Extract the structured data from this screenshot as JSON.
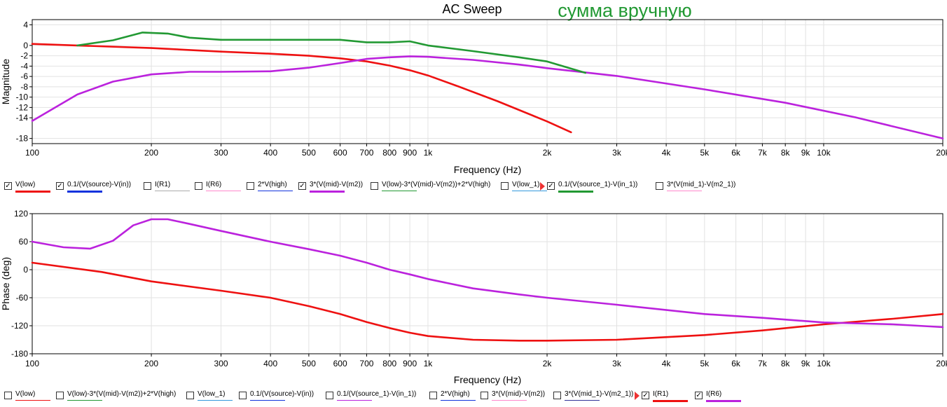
{
  "chart_data": [
    {
      "type": "line",
      "title": "AC Sweep",
      "annotation": "сумма вручную",
      "xlabel": "Frequency (Hz)",
      "ylabel": "Magnitude",
      "xscale": "log",
      "xlim": [
        100,
        20000
      ],
      "ylim": [
        -19,
        5
      ],
      "xticks": [
        100,
        200,
        300,
        400,
        500,
        600,
        700,
        800,
        900,
        1000,
        2000,
        3000,
        4000,
        5000,
        6000,
        7000,
        8000,
        9000,
        10000,
        20000
      ],
      "xticklabels": [
        "100",
        "200",
        "300",
        "400",
        "500",
        "600",
        "700",
        "800",
        "900",
        "1k",
        "2k",
        "3k",
        "4k",
        "5k",
        "6k",
        "7k",
        "8k",
        "9k",
        "10k",
        "20k"
      ],
      "yticks": [
        4,
        0,
        -2,
        -4,
        -6,
        -8,
        -10,
        -12,
        -14,
        -18
      ],
      "yticklabels": [
        "4",
        "0",
        "-2",
        "-4",
        "-6",
        "-8",
        "-10",
        "-12",
        "-14",
        "-18"
      ],
      "grid": true,
      "series": [
        {
          "name": "V(low)",
          "color": "#ee1111",
          "x": [
            100,
            200,
            300,
            400,
            500,
            600,
            700,
            800,
            900,
            1000,
            1200,
            1500,
            2000,
            2300
          ],
          "y": [
            0.3,
            -0.5,
            -1.2,
            -1.6,
            -2.0,
            -2.5,
            -3.1,
            -3.9,
            -4.8,
            -5.8,
            -8.0,
            -10.8,
            -14.7,
            -16.8
          ]
        },
        {
          "name": "3*(V(mid)-V(m2))",
          "color": "#bb22dd",
          "x": [
            100,
            130,
            160,
            200,
            250,
            300,
            400,
            500,
            600,
            700,
            800,
            900,
            1000,
            1300,
            1700,
            2000,
            3000,
            5000,
            8000,
            12000,
            20000
          ],
          "y": [
            -14.6,
            -9.5,
            -7.0,
            -5.6,
            -5.1,
            -5.1,
            -5.0,
            -4.3,
            -3.4,
            -2.6,
            -2.3,
            -2.1,
            -2.2,
            -2.8,
            -3.7,
            -4.4,
            -5.9,
            -8.5,
            -11.1,
            -13.9,
            -18.0
          ]
        },
        {
          "name": "0.1/(V(source_1)-V(in_1))",
          "color": "#229933",
          "x": [
            130,
            160,
            190,
            220,
            250,
            300,
            400,
            500,
            600,
            700,
            800,
            900,
            1000,
            1300,
            1700,
            2000,
            2500
          ],
          "y": [
            0.0,
            1.0,
            2.5,
            2.3,
            1.5,
            1.1,
            1.1,
            1.1,
            1.1,
            0.6,
            0.6,
            0.8,
            0.0,
            -1.1,
            -2.3,
            -3.1,
            -5.3
          ]
        }
      ]
    },
    {
      "type": "line",
      "xlabel": "Frequency (Hz)",
      "ylabel": "Phase (deg)",
      "xscale": "log",
      "xlim": [
        100,
        20000
      ],
      "ylim": [
        -180,
        120
      ],
      "xticks": [
        100,
        200,
        300,
        400,
        500,
        600,
        700,
        800,
        900,
        1000,
        2000,
        3000,
        4000,
        5000,
        6000,
        7000,
        8000,
        9000,
        10000,
        20000
      ],
      "xticklabels": [
        "100",
        "200",
        "300",
        "400",
        "500",
        "600",
        "700",
        "800",
        "900",
        "1k",
        "2k",
        "3k",
        "4k",
        "5k",
        "6k",
        "7k",
        "8k",
        "9k",
        "10k",
        "20k"
      ],
      "yticks": [
        120,
        60,
        0,
        -60,
        -120,
        -180
      ],
      "yticklabels": [
        "120",
        "60",
        "0",
        "-60",
        "-120",
        "-180"
      ],
      "grid": true,
      "series": [
        {
          "name": "I(R1)",
          "color": "#ee1111",
          "x": [
            100,
            150,
            200,
            300,
            400,
            500,
            600,
            700,
            800,
            900,
            1000,
            1300,
            1700,
            2000,
            3000,
            5000,
            7000,
            10000,
            15000,
            20000
          ],
          "y": [
            15,
            -5,
            -25,
            -45,
            -60,
            -78,
            -95,
            -112,
            -125,
            -135,
            -142,
            -150,
            -152,
            -152,
            -150,
            -140,
            -130,
            -117,
            -105,
            -95
          ]
        },
        {
          "name": "I(R6)",
          "color": "#bb22dd",
          "x": [
            100,
            120,
            140,
            160,
            180,
            200,
            220,
            250,
            300,
            400,
            500,
            600,
            700,
            800,
            900,
            1000,
            1300,
            1700,
            2000,
            3000,
            5000,
            7000,
            10000,
            15000,
            20000
          ],
          "y": [
            60,
            48,
            45,
            62,
            95,
            108,
            108,
            98,
            83,
            60,
            44,
            30,
            15,
            0,
            -10,
            -20,
            -40,
            -53,
            -60,
            -75,
            -95,
            -103,
            -113,
            -117,
            -123
          ]
        }
      ]
    }
  ],
  "legend_top": [
    {
      "label": "V(low)",
      "checked": true,
      "color": "#ee1111",
      "marker": false
    },
    {
      "label": "0.1/(V(source)-V(in))",
      "checked": true,
      "color": "#1133dd",
      "marker": false
    },
    {
      "label": "I(R1)",
      "checked": false,
      "color": "#aaaaaa",
      "marker": false
    },
    {
      "label": "I(R6)",
      "checked": false,
      "color": "#ff88cc",
      "marker": false
    },
    {
      "label": "2*V(high)",
      "checked": false,
      "color": "#1133dd",
      "marker": false
    },
    {
      "label": "3*(V(mid)-V(m2))",
      "checked": true,
      "color": "#bb22dd",
      "marker": false
    },
    {
      "label": "V(low)-3*(V(mid)-V(m2))+2*V(high)",
      "checked": false,
      "color": "#229933",
      "marker": false
    },
    {
      "label": "V(low_1)",
      "checked": false,
      "color": "#3399dd",
      "marker": false
    },
    {
      "label": "0.1/(V(source_1)-V(in_1))",
      "checked": true,
      "color": "#229933",
      "marker": true
    },
    {
      "label": "3*(V(mid_1)-V(m2_1))",
      "checked": false,
      "color": "#ff88cc",
      "marker": false
    }
  ],
  "legend_bottom": [
    {
      "label": "V(low)",
      "checked": false,
      "color": "#ee1111",
      "marker": false
    },
    {
      "label": "V(low)-3*(V(mid)-V(m2))+2*V(high)",
      "checked": false,
      "color": "#229933",
      "marker": false
    },
    {
      "label": "V(low_1)",
      "checked": false,
      "color": "#3399dd",
      "marker": false
    },
    {
      "label": "0.1/(V(source)-V(in))",
      "checked": false,
      "color": "#1133dd",
      "marker": false
    },
    {
      "label": "0.1/(V(source_1)-V(in_1))",
      "checked": false,
      "color": "#bb22dd",
      "marker": false
    },
    {
      "label": "2*V(high)",
      "checked": false,
      "color": "#1133dd",
      "marker": false
    },
    {
      "label": "3*(V(mid)-V(m2))",
      "checked": false,
      "color": "#ff88cc",
      "marker": false
    },
    {
      "label": "3*(V(mid_1)-V(m2_1))",
      "checked": false,
      "color": "#333399",
      "marker": false
    },
    {
      "label": "I(R1)",
      "checked": true,
      "color": "#ee1111",
      "marker": true
    },
    {
      "label": "I(R6)",
      "checked": true,
      "color": "#bb22dd",
      "marker": false
    }
  ]
}
